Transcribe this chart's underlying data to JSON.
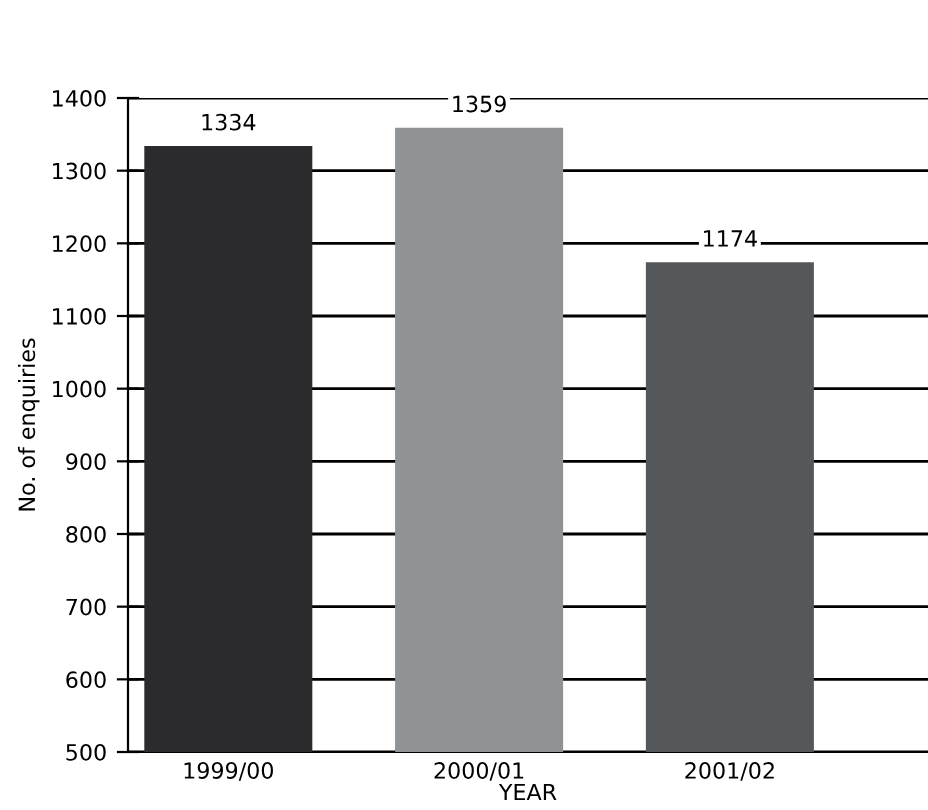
{
  "chart_data": {
    "type": "bar",
    "xlabel": "YEAR",
    "ylabel": "No. of enquiries",
    "categories": [
      "1999/00",
      "2000/01",
      "2001/02"
    ],
    "values": [
      1334,
      1359,
      1174
    ],
    "colors": [
      "#2b2b2e",
      "#8f9395",
      "#55585b"
    ],
    "ylim": [
      500,
      1400
    ],
    "yticks": [
      500,
      600,
      700,
      800,
      900,
      1000,
      1100,
      1200,
      1300,
      1400
    ],
    "grid": "y",
    "data_labels": true
  }
}
